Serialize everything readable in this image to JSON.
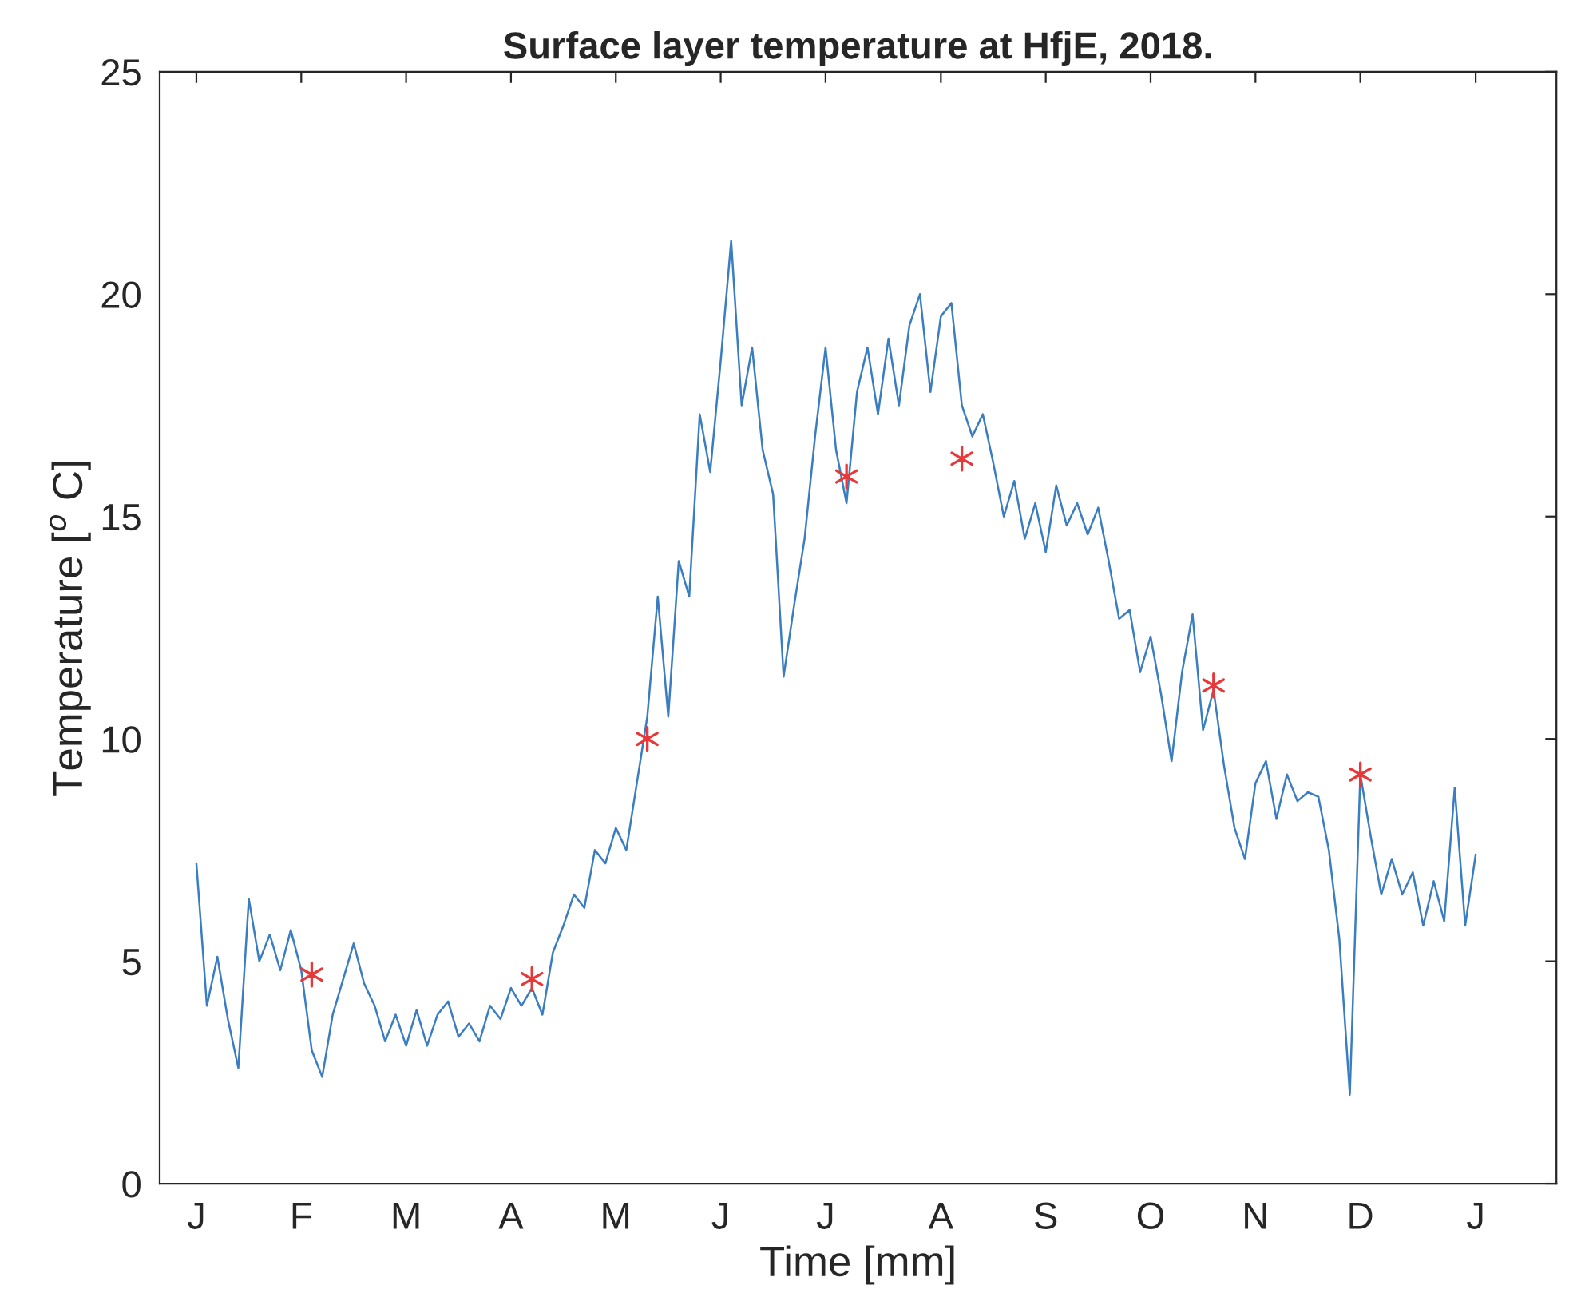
{
  "chart_data": {
    "type": "line",
    "title": "Surface layer temperature at HfjE, 2018.",
    "xlabel": "Time [mm]",
    "ylabel": "Temperature [$^{o}$ C]",
    "ylim": [
      0,
      25
    ],
    "yticks": [
      0,
      5,
      10,
      15,
      20,
      25
    ],
    "grid": false,
    "categories": [
      "J",
      null,
      null,
      null,
      null,
      null,
      null,
      null,
      null,
      null,
      "F",
      null,
      null,
      null,
      null,
      null,
      null,
      null,
      null,
      null,
      "M",
      null,
      null,
      null,
      null,
      null,
      null,
      null,
      null,
      null,
      "A",
      null,
      null,
      null,
      null,
      null,
      null,
      null,
      null,
      null,
      "M",
      null,
      null,
      null,
      null,
      null,
      null,
      null,
      null,
      null,
      "J",
      null,
      null,
      null,
      null,
      null,
      null,
      null,
      null,
      null,
      "J",
      null,
      null,
      null,
      null,
      null,
      null,
      null,
      null,
      null,
      null,
      "A",
      null,
      null,
      null,
      null,
      null,
      null,
      null,
      null,
      null,
      "S",
      null,
      null,
      null,
      null,
      null,
      null,
      null,
      null,
      null,
      "O",
      null,
      null,
      null,
      null,
      null,
      null,
      null,
      null,
      null,
      "N",
      null,
      null,
      null,
      null,
      null,
      null,
      null,
      null,
      null,
      "D",
      null,
      null,
      null,
      null,
      null,
      null,
      null,
      null,
      null,
      null,
      "J"
    ],
    "series": [
      {
        "color": "#3a7dc1",
        "marker": "none",
        "line_style": "solid",
        "values": [
          7.2,
          4.0,
          5.1,
          3.7,
          2.6,
          6.4,
          5.0,
          5.6,
          4.8,
          5.7,
          4.8,
          3.0,
          2.4,
          3.8,
          4.6,
          5.4,
          4.5,
          4.0,
          3.2,
          3.8,
          3.1,
          3.9,
          3.1,
          3.8,
          4.1,
          3.3,
          3.6,
          3.2,
          4.0,
          3.7,
          4.4,
          4.0,
          4.4,
          3.8,
          5.2,
          5.8,
          6.5,
          6.2,
          7.5,
          7.2,
          8.0,
          7.5,
          9.0,
          10.5,
          13.2,
          10.5,
          14.0,
          13.2,
          17.3,
          16.0,
          18.5,
          21.2,
          17.5,
          18.8,
          16.5,
          15.5,
          11.4,
          13.0,
          14.5,
          16.8,
          18.8,
          16.5,
          15.3,
          17.8,
          18.8,
          17.3,
          19.0,
          17.5,
          19.3,
          20.0,
          17.8,
          19.5,
          19.8,
          17.5,
          16.8,
          17.3,
          16.2,
          15.0,
          15.8,
          14.5,
          15.3,
          14.2,
          15.7,
          14.8,
          15.3,
          14.6,
          15.2,
          14.0,
          12.7,
          12.9,
          11.5,
          12.3,
          11.0,
          9.5,
          11.5,
          12.8,
          10.2,
          11.1,
          9.4,
          8.0,
          7.3,
          9.0,
          9.5,
          8.2,
          9.2,
          8.6,
          8.8,
          8.7,
          7.5,
          5.5,
          2.0,
          9.2,
          7.8,
          6.5,
          7.3,
          6.5,
          7.0,
          5.8,
          6.8,
          5.9,
          8.9,
          5.8,
          7.4
        ]
      },
      {
        "type": "scatter",
        "color": "#e8393a",
        "marker": "cross",
        "values": [
          null,
          null,
          null,
          null,
          null,
          null,
          null,
          null,
          null,
          null,
          null,
          4.7,
          null,
          null,
          null,
          null,
          null,
          null,
          null,
          null,
          null,
          null,
          null,
          null,
          null,
          null,
          null,
          null,
          null,
          null,
          null,
          null,
          4.6,
          null,
          null,
          null,
          null,
          null,
          null,
          null,
          null,
          null,
          null,
          10.0,
          null,
          null,
          null,
          null,
          null,
          null,
          null,
          null,
          null,
          null,
          null,
          null,
          null,
          null,
          null,
          null,
          null,
          null,
          15.9,
          null,
          null,
          null,
          null,
          null,
          null,
          null,
          null,
          null,
          null,
          16.3,
          null,
          null,
          null,
          null,
          null,
          null,
          null,
          null,
          null,
          null,
          null,
          null,
          null,
          null,
          null,
          null,
          null,
          null,
          null,
          null,
          null,
          null,
          null,
          11.2,
          null,
          null,
          null,
          null,
          null,
          null,
          null,
          null,
          null,
          null,
          null,
          null,
          null,
          9.2,
          null,
          null,
          null,
          null,
          null,
          null,
          null,
          null,
          null,
          null,
          null
        ]
      }
    ]
  }
}
